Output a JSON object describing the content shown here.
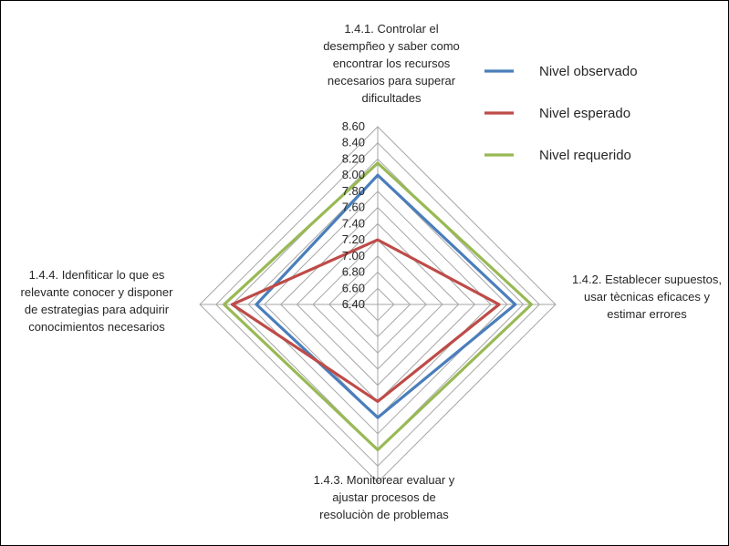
{
  "chart_data": {
    "type": "radar",
    "axes": [
      [
        "1.4.1. Controlar el",
        "desempñeo y saber como",
        "encontrar los recursos",
        "necesarios para superar",
        "dificultades"
      ],
      [
        "1.4.2. Establecer supuestos,",
        "usar tècnicas eficaces y",
        "estimar errores"
      ],
      [
        "1.4.3. Monitorear evaluar y",
        "ajustar procesos de",
        "resoluciòn de problemas"
      ],
      [
        "1.4.4. Idenfiticar lo que es",
        "relevante conocer y disponer",
        "de estrategias para adquirir",
        "conocimientos necesarios"
      ]
    ],
    "ticks": [
      "6.40",
      "6.60",
      "6.80",
      "7.00",
      "7.20",
      "7.40",
      "7.60",
      "7.80",
      "8.00",
      "8.20",
      "8.40",
      "8.60"
    ],
    "rmin": 6.4,
    "rmax": 8.6,
    "series": [
      {
        "name": "Nivel observado",
        "color": "#4a7ebb",
        "values": [
          8.0,
          8.1,
          7.8,
          7.9
        ]
      },
      {
        "name": "Nivel esperado",
        "color": "#be4b48",
        "values": [
          7.2,
          7.9,
          7.6,
          8.2
        ]
      },
      {
        "name": "Nivel requerido",
        "color": "#98b954",
        "values": [
          8.15,
          8.3,
          8.2,
          8.3
        ]
      }
    ],
    "grid": true,
    "legend_position": "top-right"
  }
}
